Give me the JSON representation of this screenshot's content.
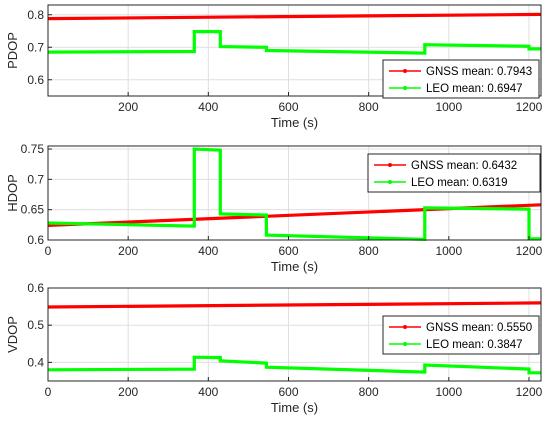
{
  "chart_data": [
    {
      "type": "line",
      "ylabel": "PDOP",
      "xlabel": "Time (s)",
      "xlim": [
        0,
        1230
      ],
      "ylim": [
        0.55,
        0.83
      ],
      "xticks": [
        200,
        400,
        600,
        800,
        1000,
        1200
      ],
      "yticks": [
        0.6,
        0.7,
        0.8
      ],
      "ytick_labels": [
        "0.6",
        "0.7",
        "0.8"
      ],
      "grid": true,
      "legend_position": "bottom-right",
      "series": [
        {
          "name": "GNSS mean: 0.7943",
          "color": "#ff0000",
          "x": [
            0,
            1230
          ],
          "y": [
            0.788,
            0.801
          ]
        },
        {
          "name": "LEO mean: 0.6947",
          "color": "#00ff00",
          "x": [
            0,
            365,
            365,
            430,
            430,
            545,
            545,
            940,
            940,
            1200,
            1200,
            1230
          ],
          "y": [
            0.685,
            0.687,
            0.748,
            0.748,
            0.702,
            0.7,
            0.69,
            0.682,
            0.708,
            0.703,
            0.695,
            0.695
          ]
        }
      ]
    },
    {
      "type": "line",
      "ylabel": "HDOP",
      "xlabel": "Time (s)",
      "xlim": [
        0,
        1230
      ],
      "ylim": [
        0.6,
        0.755
      ],
      "xticks": [
        0,
        200,
        400,
        600,
        800,
        1000,
        1200
      ],
      "yticks": [
        0.6,
        0.65,
        0.7,
        0.75
      ],
      "ytick_labels": [
        "0.6",
        "0.65",
        "0.7",
        "0.75"
      ],
      "grid": true,
      "legend_position": "top-right",
      "series": [
        {
          "name": "GNSS mean: 0.6432",
          "color": "#ff0000",
          "x": [
            0,
            1230
          ],
          "y": [
            0.624,
            0.658
          ]
        },
        {
          "name": "LEO mean: 0.6319",
          "color": "#00ff00",
          "x": [
            0,
            365,
            365,
            430,
            430,
            545,
            545,
            940,
            940,
            1200,
            1200,
            1230
          ],
          "y": [
            0.628,
            0.623,
            0.75,
            0.748,
            0.643,
            0.641,
            0.608,
            0.601,
            0.653,
            0.651,
            0.602,
            0.602
          ]
        }
      ]
    },
    {
      "type": "line",
      "ylabel": "VDOP",
      "xlabel": "Time (s)",
      "xlim": [
        0,
        1230
      ],
      "ylim": [
        0.35,
        0.6
      ],
      "xticks": [
        0,
        200,
        400,
        600,
        800,
        1000,
        1200
      ],
      "yticks": [
        0.4,
        0.5,
        0.6
      ],
      "ytick_labels": [
        "0.4",
        "0.5",
        "0.6"
      ],
      "grid": true,
      "legend_position": "bottom-right",
      "series": [
        {
          "name": "GNSS mean: 0.5550",
          "color": "#ff0000",
          "x": [
            0,
            1230
          ],
          "y": [
            0.549,
            0.56
          ]
        },
        {
          "name": "LEO mean: 0.3847",
          "color": "#00ff00",
          "x": [
            0,
            365,
            365,
            430,
            430,
            545,
            545,
            940,
            940,
            1200,
            1200,
            1230
          ],
          "y": [
            0.38,
            0.382,
            0.414,
            0.413,
            0.404,
            0.398,
            0.387,
            0.374,
            0.393,
            0.382,
            0.372,
            0.372
          ]
        }
      ]
    }
  ]
}
